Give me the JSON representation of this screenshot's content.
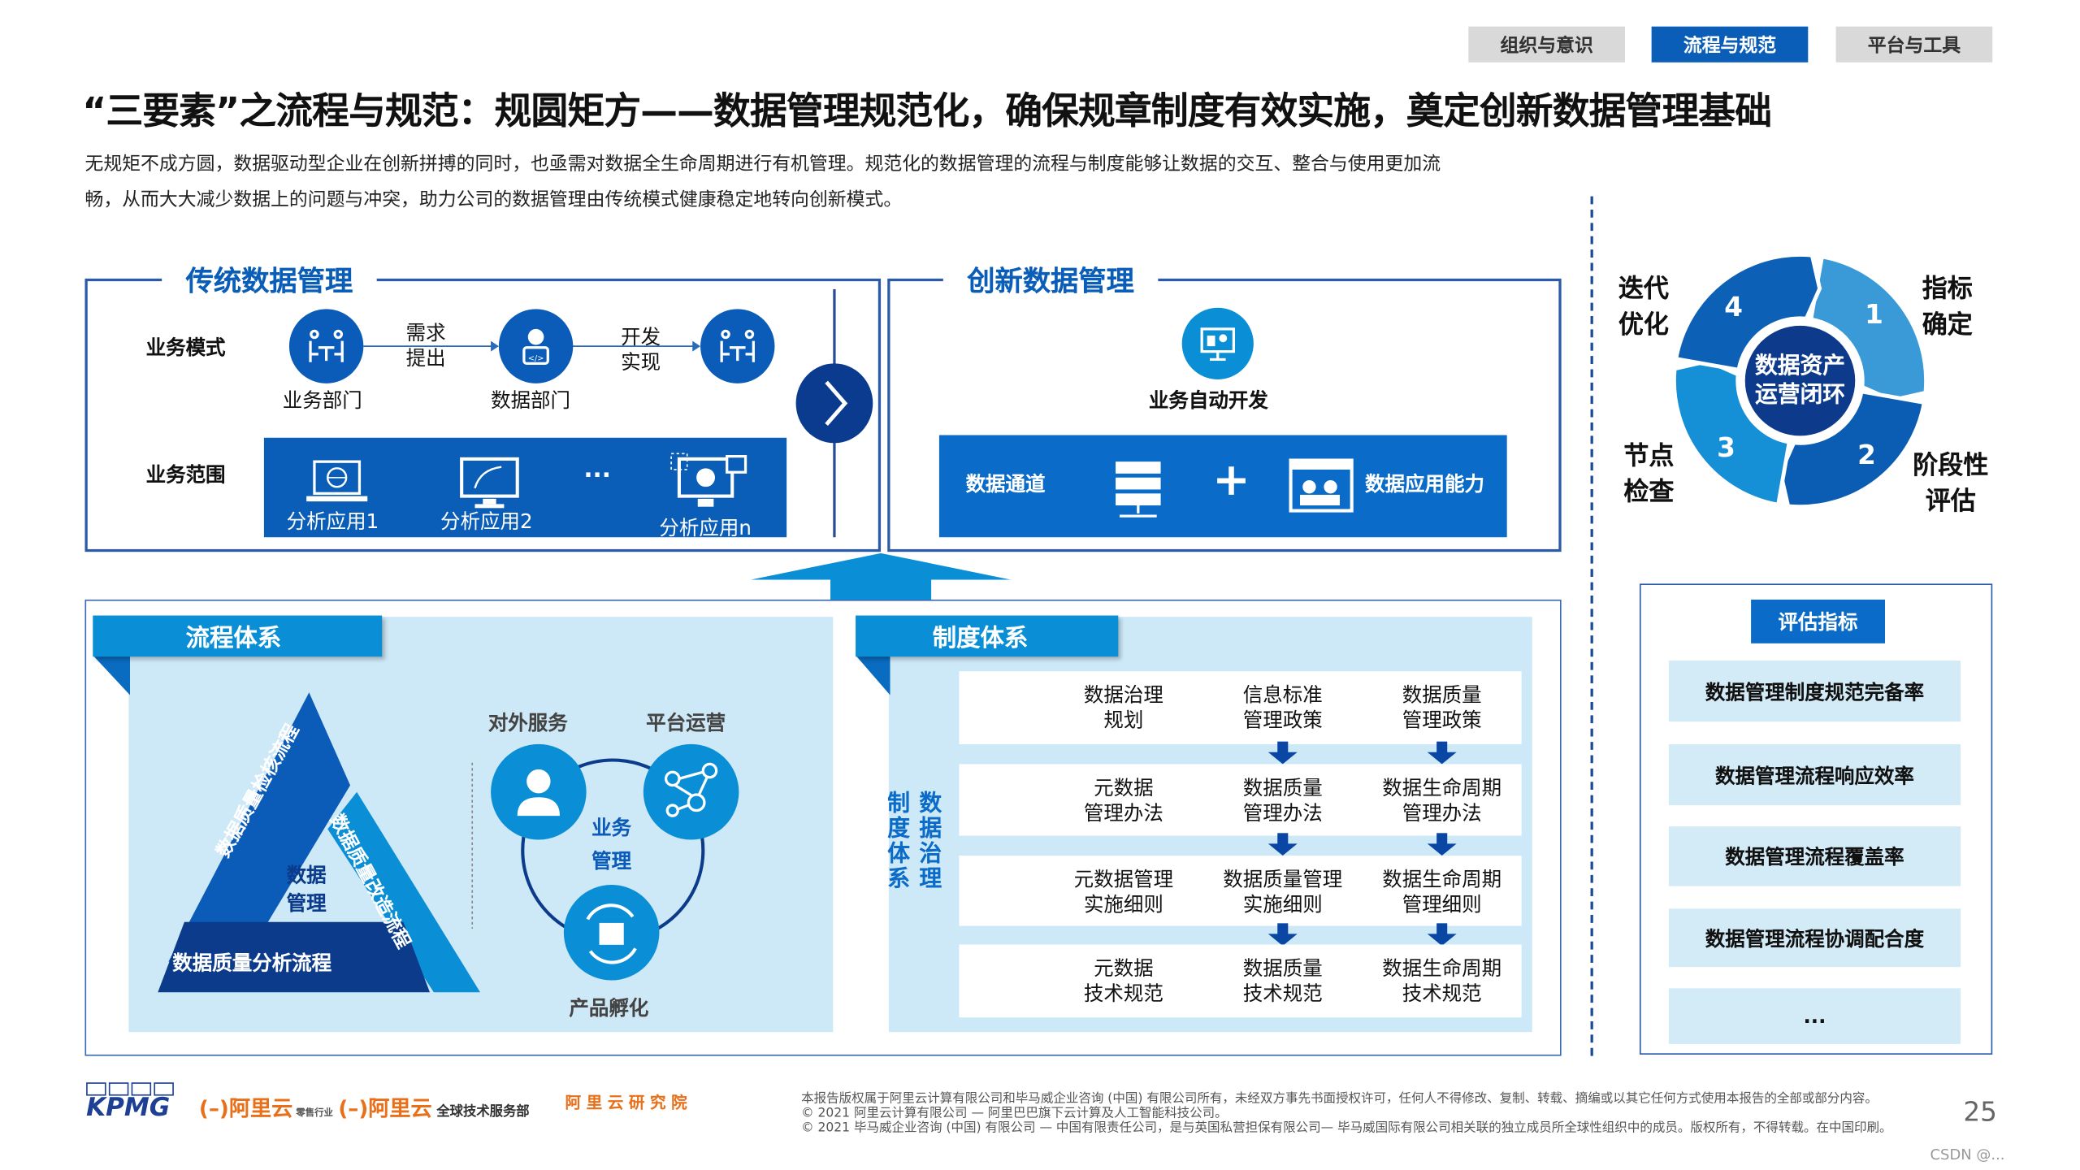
{
  "nav_tabs": [
    {
      "label": "组织与意识",
      "active": false
    },
    {
      "label": "流程与规范",
      "active": true
    },
    {
      "label": "平台与工具",
      "active": false
    }
  ],
  "title": "“三要素”之流程与规范：规圆矩方——数据管理规范化，确保规章制度有效实施，奠定创新数据管理基础",
  "subtitle_lines": [
    "无规矩不成方圆，数据驱动型企业在创新拼搏的同时，也亟需对数据全生命周期进行有机管理。规范化的数据管理的流程与制度能够让数据的交互、整合与使用更加流",
    "畅，从而大大减少数据上的问题与冲突，助力公司的数据管理由传统模式健康稳定地转向创新模式。"
  ],
  "traditional": {
    "title": "传统数据管理",
    "mode_label": "业务模式",
    "scope_label": "业务范围",
    "nodes": [
      {
        "label": "业务部门",
        "icon": "meeting-icon"
      },
      {
        "label": "数据部门",
        "icon": "developer-icon"
      },
      {
        "label": "",
        "icon": "meeting-icon"
      }
    ],
    "flow_labels": [
      [
        "需求",
        "提出"
      ],
      [
        "开发",
        "实现"
      ]
    ],
    "apps": [
      "分析应用1",
      "分析应用2",
      "···",
      "分析应用n"
    ]
  },
  "innovation": {
    "title": "创新数据管理",
    "node_label": "业务自动开发",
    "channel_label": "数据通道",
    "plus": "+",
    "capability_label": "数据应用能力"
  },
  "process": {
    "header": "流程体系",
    "triangle": [
      "数据质量检核流程",
      "数据质量改造流程",
      "数据质量分析流程"
    ],
    "triangle_center": [
      "数据",
      "管理"
    ],
    "ring_labels": [
      "对外服务",
      "平台运营",
      "产品孵化"
    ],
    "ring_center": [
      "业务",
      "管理"
    ]
  },
  "system": {
    "header": "制度体系",
    "side_label": [
      "制度体系",
      "数据治理"
    ],
    "rows": [
      [
        [
          "数据治理",
          "规划"
        ],
        [
          "信息标准",
          "管理政策"
        ],
        [
          "数据质量",
          "管理政策"
        ]
      ],
      [
        [
          "元数据",
          "管理办法"
        ],
        [
          "数据质量",
          "管理办法"
        ],
        [
          "数据生命周期",
          "管理办法"
        ]
      ],
      [
        [
          "元数据管理",
          "实施细则"
        ],
        [
          "数据质量管理",
          "实施细则"
        ],
        [
          "数据生命周期",
          "管理细则"
        ]
      ],
      [
        [
          "元数据",
          "技术规范"
        ],
        [
          "数据质量",
          "技术规范"
        ],
        [
          "数据生命周期",
          "技术规范"
        ]
      ]
    ]
  },
  "cycle": {
    "center": [
      "数据资产",
      "运营闭环"
    ],
    "steps": [
      {
        "n": "1",
        "label": [
          "指标",
          "确定"
        ],
        "color": "#3a9ad8"
      },
      {
        "n": "2",
        "label": [
          "阶段性",
          "评估"
        ],
        "color": "#0a5db2"
      },
      {
        "n": "3",
        "label": [
          "节点",
          "检查"
        ],
        "color": "#1590d6"
      },
      {
        "n": "4",
        "label": [
          "迭代",
          "优化"
        ],
        "color": "#0c60b6"
      }
    ]
  },
  "evaluation": {
    "header": "评估指标",
    "items": [
      "数据管理制度规范完备率",
      "数据管理流程响应效率",
      "数据管理流程覆盖率",
      "数据管理流程协调配合度",
      "..."
    ]
  },
  "footer": {
    "logos": [
      "KPMG",
      "阿里云 零售行业",
      "阿里云 全球技术服务部 Global Technology Services",
      "阿 里 云 研 究 院 ALIBABA CLOUD RESEARCH INSTITUTE"
    ],
    "lines": [
      "本报告版权属于阿里云计算有限公司和毕马威企业咨询 (中国) 有限公司所有，未经双方事先书面授权许可，任何人不得修改、复制、转载、摘编或以其它任何方式使用本报告的全部或部分内容。",
      "© 2021 阿里云计算有限公司 — 阿里巴巴旗下云计算及人工智能科技公司。",
      "© 2021 毕马威企业咨询 (中国) 有限公司 — 中国有限责任公司，是与英国私营担保有限公司— 毕马威国际有限公司相关联的独立成员所全球性组织中的成员。版权所有，不得转载。在中国印刷。"
    ],
    "page": "25",
    "watermark": "CSDN @..."
  },
  "colors": {
    "primary": "#0a5eb8",
    "light_panel": "#cde8f6",
    "header_blue": "#0a8fd6",
    "dark_blue": "#0a3c8c",
    "orange": "#e8701a"
  }
}
